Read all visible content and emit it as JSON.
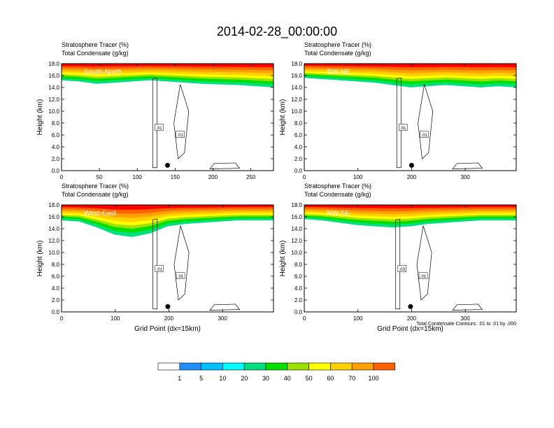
{
  "title": "2014-02-28_00:00:00",
  "colors": {
    "levels": [
      "#ffffff",
      "#1e90ff",
      "#00bfff",
      "#00ffff",
      "#00e080",
      "#00e000",
      "#a0e000",
      "#ffff00",
      "#ffd000",
      "#ffa000",
      "#ff6000",
      "#ff0000"
    ]
  },
  "chart_data": [
    {
      "type": "heatmap",
      "label": "South-North",
      "header_line1": "Stratosphere Tracer   (%)",
      "header_line2": "Total Condensate   (g/kg)",
      "ylabel": "Height (km)",
      "xlabel": "",
      "xlim": [
        0,
        280
      ],
      "ylim": [
        0,
        18
      ],
      "xticks": [
        0,
        50,
        100,
        150,
        200,
        250
      ],
      "yticks": [
        "0.0",
        "2.0",
        "4.0",
        "6.0",
        "8.0",
        "10.0",
        "12.0",
        "14.0",
        "16.0",
        "18.0"
      ],
      "marker_x": 140,
      "contour_labels": [
        ".01",
        ".01"
      ],
      "tracer_base_km": [
        15.2,
        15.0,
        14.6,
        14.8,
        15.0,
        15.2,
        15.0,
        14.8,
        14.6,
        14.5,
        14.4,
        14.2,
        14.0
      ],
      "note": ""
    },
    {
      "type": "heatmap",
      "label": "SW-NE",
      "header_line1": "Stratosphere Tracer   (%)",
      "header_line2": "Total Condensate   (g/kg)",
      "ylabel": "Height (km)",
      "xlabel": "",
      "xlim": [
        0,
        395
      ],
      "ylim": [
        0,
        18
      ],
      "xticks": [
        0,
        100,
        200,
        300
      ],
      "yticks": [
        "0.0",
        "2.0",
        "4.0",
        "6.0",
        "8.0",
        "10.0",
        "12.0",
        "14.0",
        "16.0",
        "18.0"
      ],
      "marker_x": 200,
      "contour_labels": [
        ".01",
        ".01"
      ],
      "tracer_base_km": [
        15.6,
        15.4,
        15.2,
        15.0,
        14.8,
        14.4,
        14.0,
        14.2,
        14.4,
        14.2,
        14.0,
        14.2,
        14.0
      ],
      "note": ""
    },
    {
      "type": "heatmap",
      "label": "West-East",
      "header_line1": "Stratosphere Tracer   (%)",
      "header_line2": "Total Condensate   (g/kg)",
      "ylabel": "Height (km)",
      "xlabel": "Grid Point (dx=15km)",
      "xlim": [
        0,
        395
      ],
      "ylim": [
        0,
        18
      ],
      "xticks": [
        0,
        100,
        200,
        300
      ],
      "yticks": [
        "0.0",
        "2.0",
        "4.0",
        "6.0",
        "8.0",
        "10.0",
        "12.0",
        "14.0",
        "16.0",
        "18.0"
      ],
      "marker_x": 198,
      "contour_labels": [
        ".01",
        ".01"
      ],
      "tracer_base_km": [
        15.4,
        15.2,
        14.2,
        13.0,
        12.6,
        13.2,
        14.4,
        14.8,
        15.0,
        15.2,
        15.4,
        15.4,
        15.4
      ],
      "note": ""
    },
    {
      "type": "heatmap",
      "label": "NW-SE",
      "header_line1": "Stratosphere Tracer   (%)",
      "header_line2": "Total Condensate   (g/kg)",
      "ylabel": "Height (km)",
      "xlabel": "Grid Point (dx=15km)",
      "xlim": [
        0,
        395
      ],
      "ylim": [
        0,
        18
      ],
      "xticks": [
        0,
        100,
        200,
        300
      ],
      "yticks": [
        "0.0",
        "2.0",
        "4.0",
        "6.0",
        "8.0",
        "10.0",
        "12.0",
        "14.0",
        "16.0",
        "18.0"
      ],
      "marker_x": 198,
      "contour_labels": [
        ".03",
        ".01"
      ],
      "tracer_base_km": [
        15.6,
        15.4,
        15.0,
        14.6,
        14.4,
        14.2,
        14.4,
        14.8,
        15.0,
        15.2,
        15.4,
        15.4,
        15.4
      ],
      "note": "Total Condensate Contours: .01 to .01 by .000"
    }
  ],
  "colorbar": {
    "labels": [
      "1",
      "5",
      "10",
      "20",
      "30",
      "40",
      "50",
      "60",
      "70",
      "100"
    ]
  }
}
